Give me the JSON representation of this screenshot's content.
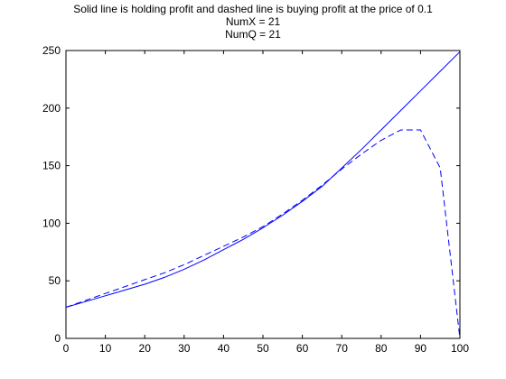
{
  "chart_data": {
    "type": "line",
    "title": [
      "Solid line is holding profit and dashed line is buying profit at the price of 0.1",
      "NumX = 21",
      "NumQ = 21"
    ],
    "xlabel": "",
    "ylabel": "",
    "xlim": [
      0,
      100
    ],
    "ylim": [
      0,
      250
    ],
    "xticks": [
      0,
      10,
      20,
      30,
      40,
      50,
      60,
      70,
      80,
      90,
      100
    ],
    "yticks": [
      0,
      50,
      100,
      150,
      200,
      250
    ],
    "grid": false,
    "legend": "none",
    "colors": {
      "line": "#0000ff",
      "axes": "#000000",
      "background": "#ffffff"
    },
    "series": [
      {
        "style": "solid",
        "x": [
          0,
          5,
          10,
          15,
          20,
          25,
          30,
          35,
          40,
          45,
          50,
          55,
          60,
          65,
          70,
          75,
          80,
          85,
          90,
          95,
          100
        ],
        "y": [
          27,
          32,
          37,
          42,
          47,
          53,
          60,
          68,
          77,
          86,
          96,
          107,
          119,
          132,
          148,
          164,
          181,
          198,
          215,
          232,
          249
        ]
      },
      {
        "style": "dashed",
        "x": [
          0,
          5,
          10,
          15,
          20,
          25,
          30,
          35,
          40,
          45,
          50,
          55,
          60,
          65,
          70,
          75,
          80,
          85,
          90,
          95,
          100
        ],
        "y": [
          27,
          33,
          39,
          45,
          51,
          57,
          64,
          72,
          80,
          88,
          97,
          108,
          120,
          133,
          147,
          160,
          172,
          181,
          181,
          148,
          0
        ]
      }
    ]
  }
}
